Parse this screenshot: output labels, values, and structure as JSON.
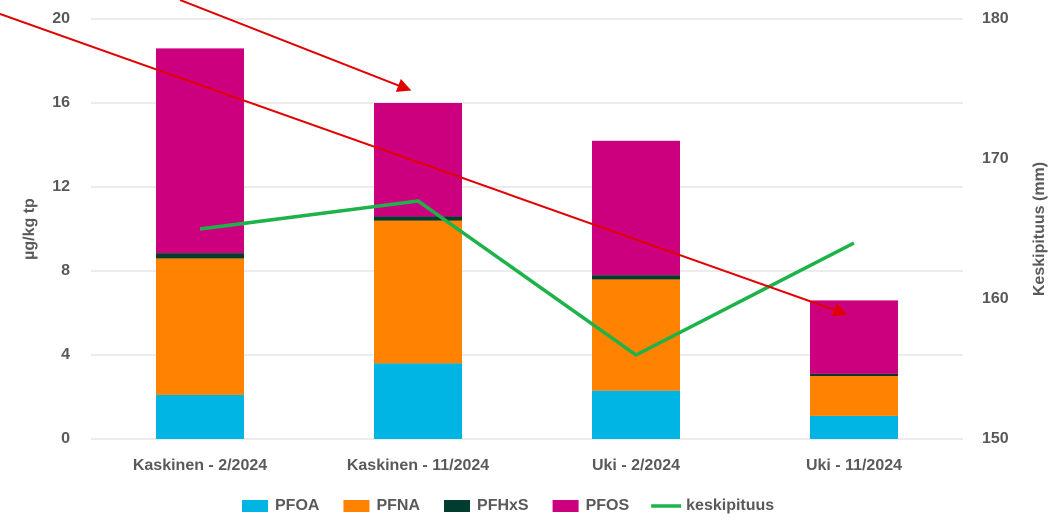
{
  "chart_data": {
    "type": "bar",
    "categories": [
      "Kaskinen - 2/2024",
      "Kaskinen - 11/2024",
      "Uki - 2/2024",
      "Uki - 11/2024"
    ],
    "stacked": true,
    "series": [
      {
        "name": "PFOA",
        "color": "#00b4e4",
        "values": [
          2.1,
          3.6,
          2.3,
          1.1
        ]
      },
      {
        "name": "PFNA",
        "color": "#ff8200",
        "values": [
          6.5,
          6.8,
          5.3,
          1.9
        ]
      },
      {
        "name": "PFHxS",
        "color": "#003d2e",
        "values": [
          0.25,
          0.2,
          0.2,
          0.1
        ]
      },
      {
        "name": "PFOS",
        "color": "#cc007f",
        "values": [
          9.75,
          5.4,
          6.4,
          3.5
        ]
      },
      {
        "name": "keskipituus",
        "type": "line",
        "axis": "y2",
        "color": "#1db24a",
        "values": [
          165,
          167,
          156,
          164
        ]
      }
    ],
    "ylabel": "µg/kg tp",
    "y2label": "Keskipituus (mm)",
    "ylim": [
      0,
      20
    ],
    "yticks": [
      0,
      4,
      8,
      12,
      16,
      20
    ],
    "y2lim": [
      150,
      180
    ],
    "y2ticks": [
      150,
      160,
      170,
      180
    ],
    "grid": true,
    "legend": "bottom"
  }
}
